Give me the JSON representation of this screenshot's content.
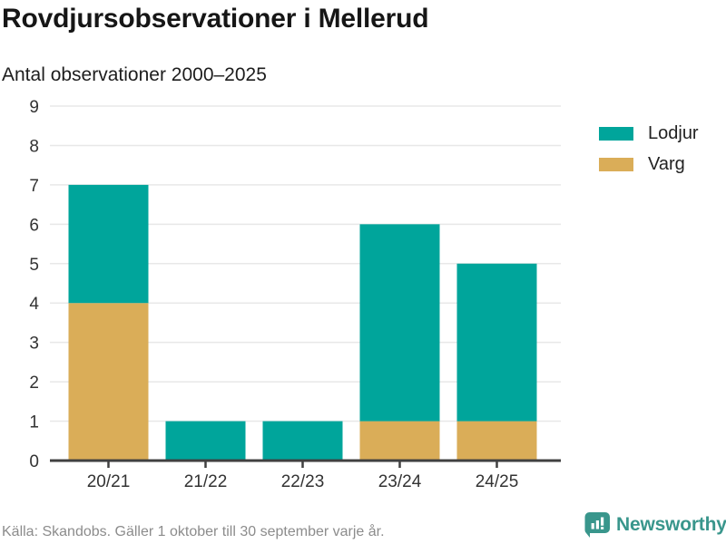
{
  "header": {
    "title": "Rovdjursobservationer i Mellerud",
    "subtitle": "Antal observationer 2000–2025"
  },
  "chart_data": {
    "type": "bar",
    "stacked": true,
    "title": "Rovdjursobservationer i Mellerud",
    "subtitle": "Antal observationer 2000–2025",
    "categories": [
      "20/21",
      "21/22",
      "22/23",
      "23/24",
      "24/25"
    ],
    "series": [
      {
        "name": "Varg",
        "color": "#DAAD58",
        "values": [
          4,
          0,
          0,
          1,
          1
        ]
      },
      {
        "name": "Lodjur",
        "color": "#00A59B",
        "values": [
          3,
          1,
          1,
          5,
          4
        ]
      }
    ],
    "xlabel": "",
    "ylabel": "",
    "ylim": [
      0,
      9
    ],
    "yticks": [
      0,
      1,
      2,
      3,
      4,
      5,
      6,
      7,
      8,
      9
    ],
    "grid": true,
    "legend_position": "right"
  },
  "legend": {
    "items": [
      {
        "label": "Lodjur",
        "color": "#00A59B"
      },
      {
        "label": "Varg",
        "color": "#DAAD58"
      }
    ]
  },
  "footer": {
    "source": "Källa: Skandobs. Gäller 1 oktober till 30 september varje år.",
    "brand": "Newsworthy"
  },
  "colors": {
    "teal": "#00A59B",
    "gold": "#DAAD58",
    "brand_teal": "#39968C",
    "grid": "#E8E8E8",
    "axis": "#404040",
    "tick_label": "#333333",
    "muted_text": "#8C8C8C"
  }
}
